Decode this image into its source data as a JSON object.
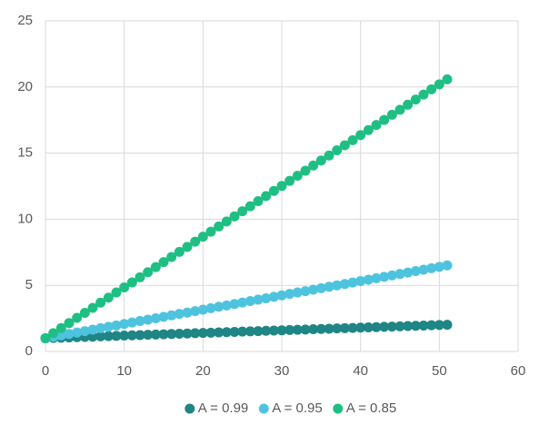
{
  "chart_data": {
    "type": "scatter",
    "x": [
      0,
      1,
      2,
      3,
      4,
      5,
      6,
      7,
      8,
      9,
      10,
      11,
      12,
      13,
      14,
      15,
      16,
      17,
      18,
      19,
      20,
      21,
      22,
      23,
      24,
      25,
      26,
      27,
      28,
      29,
      30,
      31,
      32,
      33,
      34,
      35,
      36,
      37,
      38,
      39,
      40,
      41,
      42,
      43,
      44,
      45,
      46,
      47,
      48,
      49,
      50,
      51
    ],
    "series": [
      {
        "name": "A = 0.99",
        "color": "#1f8585",
        "values": [
          1.0,
          1.02,
          1.04,
          1.06,
          1.08,
          1.1,
          1.12,
          1.14,
          1.16,
          1.18,
          1.2,
          1.22,
          1.24,
          1.26,
          1.28,
          1.3,
          1.32,
          1.34,
          1.36,
          1.38,
          1.4,
          1.42,
          1.44,
          1.46,
          1.48,
          1.5,
          1.52,
          1.54,
          1.56,
          1.58,
          1.6,
          1.62,
          1.64,
          1.66,
          1.68,
          1.7,
          1.72,
          1.74,
          1.76,
          1.78,
          1.8,
          1.82,
          1.84,
          1.86,
          1.88,
          1.9,
          1.92,
          1.94,
          1.96,
          1.98,
          2.0,
          2.02
        ]
      },
      {
        "name": "A = 0.95",
        "color": "#4ec3de",
        "values": [
          1.0,
          1.11,
          1.22,
          1.32,
          1.43,
          1.54,
          1.65,
          1.76,
          1.86,
          1.97,
          2.08,
          2.19,
          2.3,
          2.4,
          2.51,
          2.62,
          2.73,
          2.84,
          2.94,
          3.05,
          3.16,
          3.27,
          3.38,
          3.48,
          3.59,
          3.7,
          3.81,
          3.92,
          4.02,
          4.13,
          4.24,
          4.35,
          4.46,
          4.56,
          4.67,
          4.78,
          4.89,
          5.0,
          5.1,
          5.21,
          5.32,
          5.43,
          5.54,
          5.64,
          5.75,
          5.86,
          5.97,
          6.08,
          6.18,
          6.29,
          6.4,
          6.51
        ]
      },
      {
        "name": "A = 0.85",
        "color": "#1fbf84",
        "values": [
          1.0,
          1.38,
          1.77,
          2.15,
          2.54,
          2.92,
          3.3,
          3.69,
          4.07,
          4.46,
          4.84,
          5.22,
          5.61,
          5.99,
          6.38,
          6.76,
          7.14,
          7.53,
          7.91,
          8.3,
          8.68,
          9.06,
          9.45,
          9.83,
          10.22,
          10.6,
          10.98,
          11.37,
          11.75,
          12.14,
          12.52,
          12.9,
          13.29,
          13.67,
          14.06,
          14.44,
          14.82,
          15.21,
          15.59,
          15.98,
          16.36,
          16.74,
          17.13,
          17.51,
          17.9,
          18.28,
          18.66,
          19.05,
          19.43,
          19.82,
          20.2,
          20.58
        ]
      }
    ],
    "xlim": [
      0,
      60
    ],
    "xticks": [
      0,
      10,
      20,
      30,
      40,
      50,
      60
    ],
    "ylim": [
      0,
      25
    ],
    "yticks": [
      0,
      5,
      10,
      15,
      20,
      25
    ],
    "grid": true,
    "legend": "bottom"
  }
}
